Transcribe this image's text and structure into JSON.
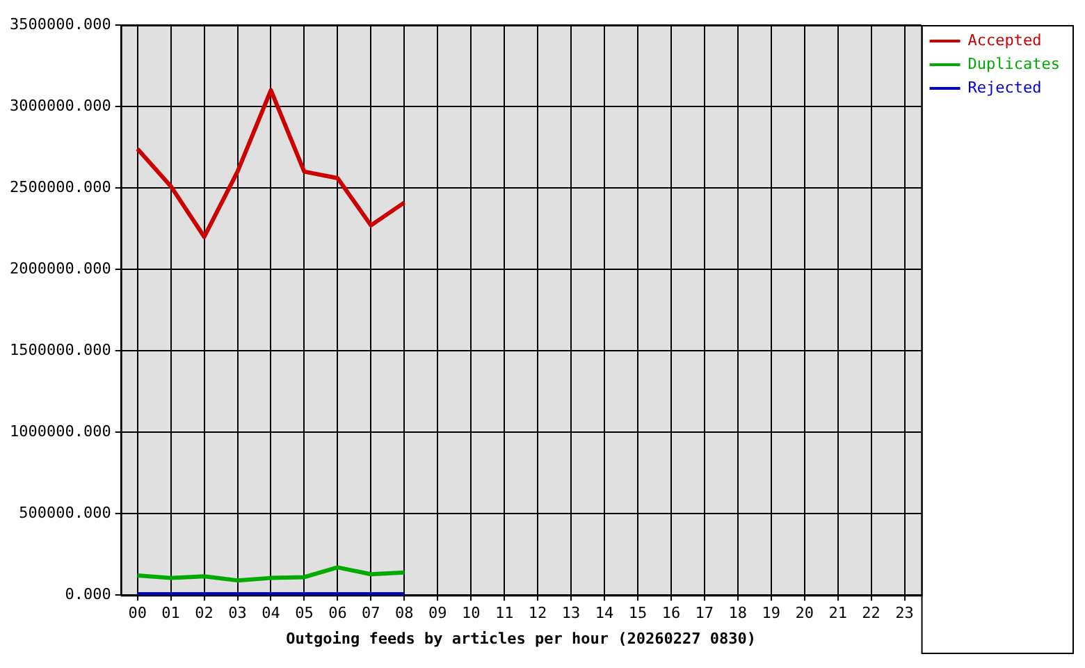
{
  "chart_data": {
    "type": "line",
    "xlabel": "Outgoing feeds by articles per hour (20260227 0830)",
    "categories": [
      "00",
      "01",
      "02",
      "03",
      "04",
      "05",
      "06",
      "07",
      "08",
      "09",
      "10",
      "11",
      "12",
      "13",
      "14",
      "15",
      "16",
      "17",
      "18",
      "19",
      "20",
      "21",
      "22",
      "23"
    ],
    "series": [
      {
        "name": "Accepted",
        "color": "#cc0000",
        "values": [
          2740000,
          2510000,
          2200000,
          2600000,
          3100000,
          2600000,
          2560000,
          2270000,
          2410000,
          null,
          null,
          null,
          null,
          null,
          null,
          null,
          null,
          null,
          null,
          null,
          null,
          null,
          null,
          null
        ]
      },
      {
        "name": "Duplicates",
        "color": "#00aa00",
        "values": [
          120000,
          105000,
          115000,
          90000,
          105000,
          110000,
          170000,
          128000,
          139000,
          null,
          null,
          null,
          null,
          null,
          null,
          null,
          null,
          null,
          null,
          null,
          null,
          null,
          null,
          null
        ]
      },
      {
        "name": "Rejected",
        "color": "#0000cc",
        "values": [
          5000,
          5000,
          5000,
          5000,
          5000,
          5000,
          5000,
          5000,
          5000,
          null,
          null,
          null,
          null,
          null,
          null,
          null,
          null,
          null,
          null,
          null,
          null,
          null,
          null,
          null
        ]
      }
    ],
    "ylim": [
      0,
      3500000
    ],
    "yticks": [
      {
        "value": 0,
        "label": "0.000"
      },
      {
        "value": 500000,
        "label": "500000.000"
      },
      {
        "value": 1000000,
        "label": "1000000.000"
      },
      {
        "value": 1500000,
        "label": "1500000.000"
      },
      {
        "value": 2000000,
        "label": "2000000.000"
      },
      {
        "value": 2500000,
        "label": "2500000.000"
      },
      {
        "value": 3000000,
        "label": "3000000.000"
      },
      {
        "value": 3500000,
        "label": "3500000.000"
      }
    ],
    "grid": true,
    "legend": "top right",
    "marker": "none",
    "line_style": "solid"
  }
}
